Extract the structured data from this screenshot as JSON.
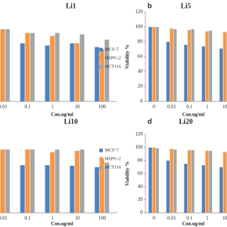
{
  "chart_data": [
    {
      "type": "bar",
      "title": "Li1",
      "x_label": "Con.ug/ml",
      "categories": [
        "0.01",
        "0.1",
        "1",
        "10",
        "100"
      ],
      "series": [
        {
          "name": "MCF-7",
          "color": "#4f81bd",
          "values": [
            97,
            78,
            75,
            78,
            73
          ]
        },
        {
          "name": "HEPG-2",
          "color": "#f79646",
          "values": [
            97,
            92,
            88,
            78,
            70
          ]
        },
        {
          "name": "HCT116",
          "color": "#a5a5a5",
          "values": [
            97,
            92,
            92,
            90,
            83
          ]
        }
      ],
      "ylim": [
        0,
        120
      ],
      "legend": "right"
    },
    {
      "type": "bar",
      "label": "b",
      "title": "Li5",
      "y_label": "Viability %",
      "x_label": "Con.ug/ml",
      "categories": [
        "0",
        "0.01",
        "0.1",
        "1",
        "10"
      ],
      "series": [
        {
          "color": "#4f81bd",
          "values": [
            100,
            80,
            76,
            74,
            71
          ]
        },
        {
          "color": "#f79646",
          "values": [
            100,
            98,
            96,
            94,
            93
          ]
        },
        {
          "color": "#a5a5a5",
          "values": [
            100,
            97,
            97,
            95,
            94
          ]
        }
      ],
      "ylim": [
        0,
        120
      ],
      "yticks": [
        0,
        20,
        40,
        60,
        80,
        100,
        120
      ]
    },
    {
      "type": "bar",
      "title": "Li10",
      "x_label": "Con.ug/ml",
      "categories": [
        "0.01",
        "0.1",
        "1",
        "10",
        "100"
      ],
      "series": [
        {
          "name": "MCF-7",
          "color": "#4f81bd",
          "values": [
            97,
            73,
            73,
            72,
            70
          ]
        },
        {
          "name": "HEPG-2",
          "color": "#f79646",
          "values": [
            97,
            97,
            93,
            95,
            83
          ]
        },
        {
          "name": "HCT116",
          "color": "#a5a5a5",
          "values": [
            97,
            97,
            97,
            97,
            77
          ]
        }
      ],
      "ylim": [
        0,
        120
      ],
      "legend": "right"
    },
    {
      "type": "bar",
      "label": "d",
      "title": "Li20",
      "y_label": "Viability %",
      "x_label": "Con.ug/ml",
      "categories": [
        "0",
        "0.01",
        "0.1",
        "1",
        "10"
      ],
      "series": [
        {
          "color": "#4f81bd",
          "values": [
            100,
            80,
            75,
            73,
            70
          ]
        },
        {
          "color": "#f79646",
          "values": [
            100,
            98,
            96,
            95,
            93
          ]
        },
        {
          "color": "#a5a5a5",
          "values": [
            99,
            97,
            96,
            95,
            94
          ]
        }
      ],
      "ylim": [
        0,
        120
      ],
      "yticks": [
        0,
        20,
        40,
        60,
        80,
        100,
        120
      ]
    }
  ]
}
